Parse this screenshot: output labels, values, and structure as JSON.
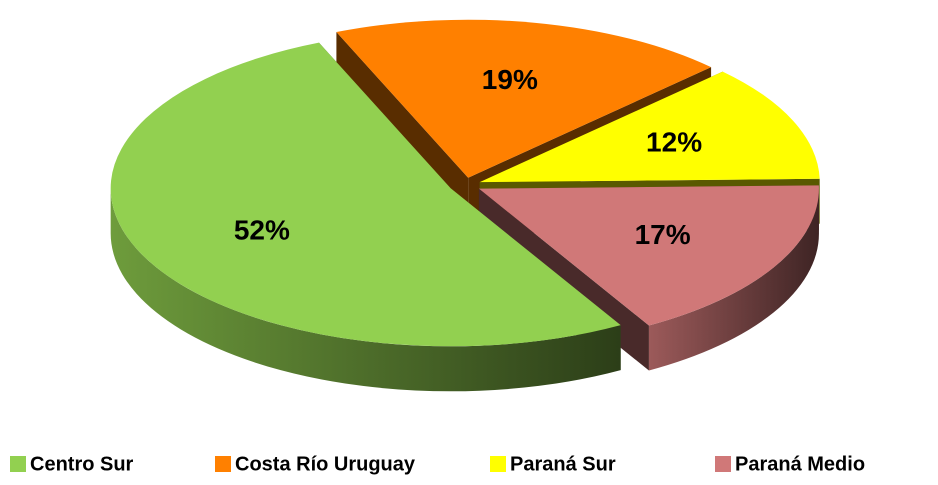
{
  "chart_data": {
    "type": "pie",
    "categories": [
      "Centro Sur",
      "Costa Río Uruguay",
      "Paraná Sur",
      "Paraná Medio"
    ],
    "values": [
      52,
      19,
      12,
      17
    ],
    "value_labels": [
      "52%",
      "19%",
      "12%",
      "17%"
    ],
    "colors": [
      "#92d050",
      "#ff8000",
      "#ffff00",
      "#d07878"
    ],
    "legend": "bottom"
  }
}
